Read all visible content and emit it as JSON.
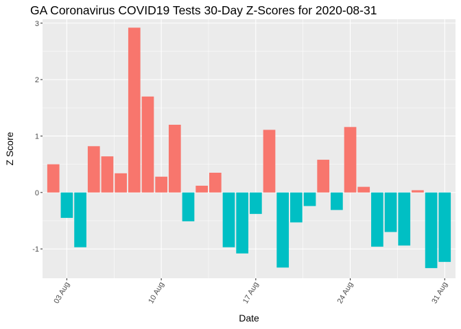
{
  "chart_data": {
    "type": "bar",
    "title": "GA Coronavirus COVID19 Tests 30-Day Z-Scores for 2020-08-31",
    "xlabel": "Date",
    "ylabel": "Z Score",
    "x_tick_labels": [
      "03 Aug",
      "10 Aug",
      "17 Aug",
      "24 Aug",
      "31 Aug"
    ],
    "y_tick_labels": [
      "-1",
      "0",
      "1",
      "2",
      "3"
    ],
    "ylim": [
      -1.52,
      3.07
    ],
    "grid": true,
    "legend": "none",
    "positive_color": "#F8766D",
    "negative_color": "#00BFC4",
    "panel_background": "#EBEBEB",
    "categories": [
      "2020-08-02",
      "2020-08-03",
      "2020-08-04",
      "2020-08-05",
      "2020-08-06",
      "2020-08-07",
      "2020-08-08",
      "2020-08-09",
      "2020-08-10",
      "2020-08-11",
      "2020-08-12",
      "2020-08-13",
      "2020-08-14",
      "2020-08-15",
      "2020-08-16",
      "2020-08-17",
      "2020-08-18",
      "2020-08-19",
      "2020-08-20",
      "2020-08-21",
      "2020-08-22",
      "2020-08-23",
      "2020-08-24",
      "2020-08-25",
      "2020-08-26",
      "2020-08-27",
      "2020-08-28",
      "2020-08-29",
      "2020-08-30",
      "2020-08-31"
    ],
    "values": [
      0.5,
      -0.45,
      -0.97,
      0.82,
      0.64,
      0.34,
      2.92,
      1.7,
      0.28,
      1.2,
      -0.51,
      0.12,
      0.35,
      -0.97,
      -1.08,
      -0.38,
      1.11,
      -1.33,
      -0.53,
      -0.24,
      0.58,
      -0.31,
      1.16,
      0.1,
      -0.96,
      -0.7,
      -0.94,
      0.04,
      -1.34,
      -1.23
    ]
  }
}
